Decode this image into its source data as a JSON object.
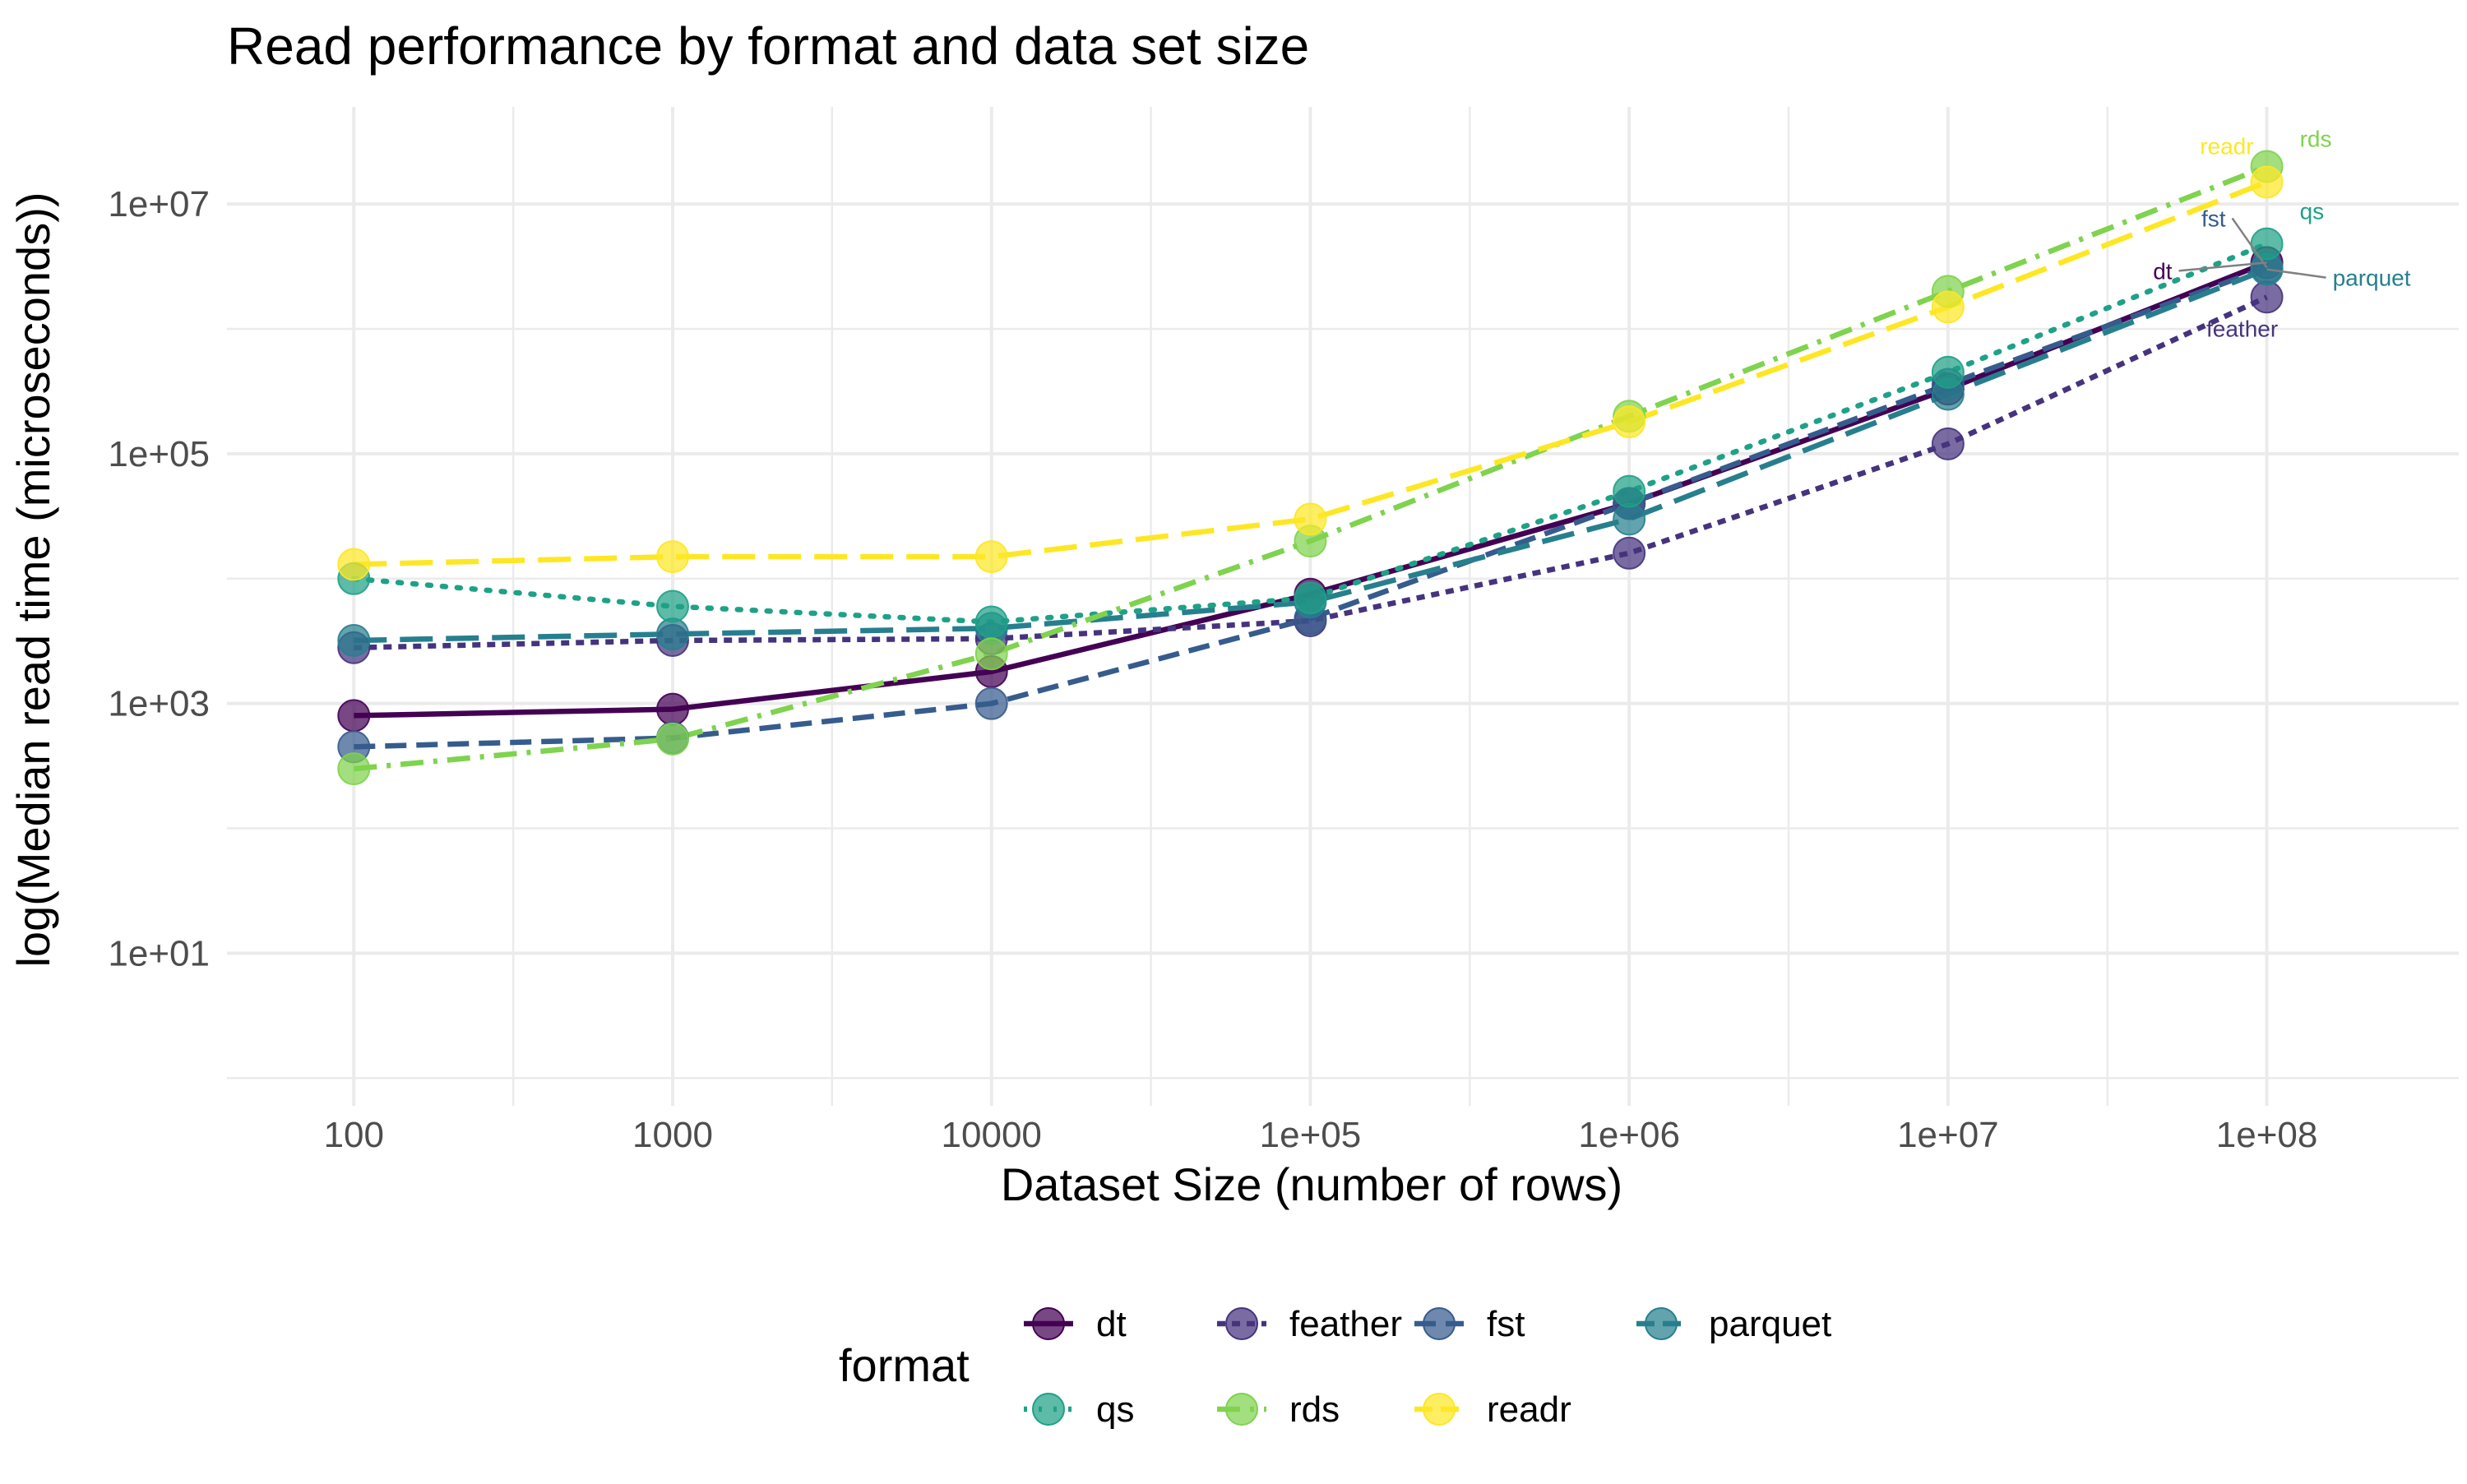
{
  "chart_data": {
    "type": "line",
    "title": "Read performance by format and data set size",
    "xlabel": "Dataset Size (number of rows)",
    "ylabel": "log(Median read time (microseconds))",
    "x_scale": "log10",
    "y_scale": "log10",
    "x": [
      100,
      1000,
      10000,
      100000,
      1000000,
      10000000,
      100000000
    ],
    "x_ticks": [
      {
        "value": 100,
        "label": "100"
      },
      {
        "value": 1000,
        "label": "1000"
      },
      {
        "value": 10000,
        "label": "10000"
      },
      {
        "value": 100000,
        "label": "1e+05"
      },
      {
        "value": 1000000,
        "label": "1e+06"
      },
      {
        "value": 10000000,
        "label": "1e+07"
      },
      {
        "value": 100000000,
        "label": "1e+08"
      }
    ],
    "y_ticks": [
      {
        "value": 10,
        "label": "1e+01"
      },
      {
        "value": 1000,
        "label": "1e+03"
      },
      {
        "value": 100000,
        "label": "1e+05"
      },
      {
        "value": 10000000,
        "label": "1e+07"
      }
    ],
    "xlim": [
      40,
      400000000
    ],
    "ylim": [
      0.6,
      60000000
    ],
    "grid": true,
    "legend": {
      "title": "format",
      "placement": "bottom"
    },
    "series": [
      {
        "name": "dt",
        "color": "#440154",
        "dash": "solid",
        "values": [
          800,
          900,
          1800,
          7500,
          40000,
          330000,
          3400000
        ]
      },
      {
        "name": "feather",
        "color": "#46337E",
        "dash": "short-dash",
        "values": [
          2800,
          3200,
          3300,
          4600,
          16000,
          120000,
          1800000
        ]
      },
      {
        "name": "fst",
        "color": "#365C8D",
        "dash": "dash",
        "values": [
          450,
          530,
          1000,
          4800,
          40000,
          360000,
          3100000
        ]
      },
      {
        "name": "parquet",
        "color": "#277F8E",
        "dash": "long-dash",
        "values": [
          3200,
          3600,
          4000,
          6500,
          30000,
          300000,
          3000000
        ]
      },
      {
        "name": "qs",
        "color": "#1FA187",
        "dash": "dotted",
        "values": [
          10000,
          6000,
          4500,
          7000,
          50000,
          450000,
          4800000
        ]
      },
      {
        "name": "rds",
        "color": "#7FD34E",
        "dash": "dash-dot",
        "values": [
          300,
          520,
          2500,
          20000,
          200000,
          2000000,
          20000000
        ]
      },
      {
        "name": "readr",
        "color": "#FDE725",
        "dash": "long-dash",
        "values": [
          13000,
          15000,
          15000,
          30000,
          180000,
          1500000,
          15000000
        ]
      }
    ],
    "end_labels": [
      {
        "series": "readr",
        "text": "readr"
      },
      {
        "series": "rds",
        "text": "rds"
      },
      {
        "series": "fst",
        "text": "fst"
      },
      {
        "series": "qs",
        "text": "qs"
      },
      {
        "series": "dt",
        "text": "dt"
      },
      {
        "series": "parquet",
        "text": "parquet"
      },
      {
        "series": "feather",
        "text": "feather"
      }
    ]
  }
}
